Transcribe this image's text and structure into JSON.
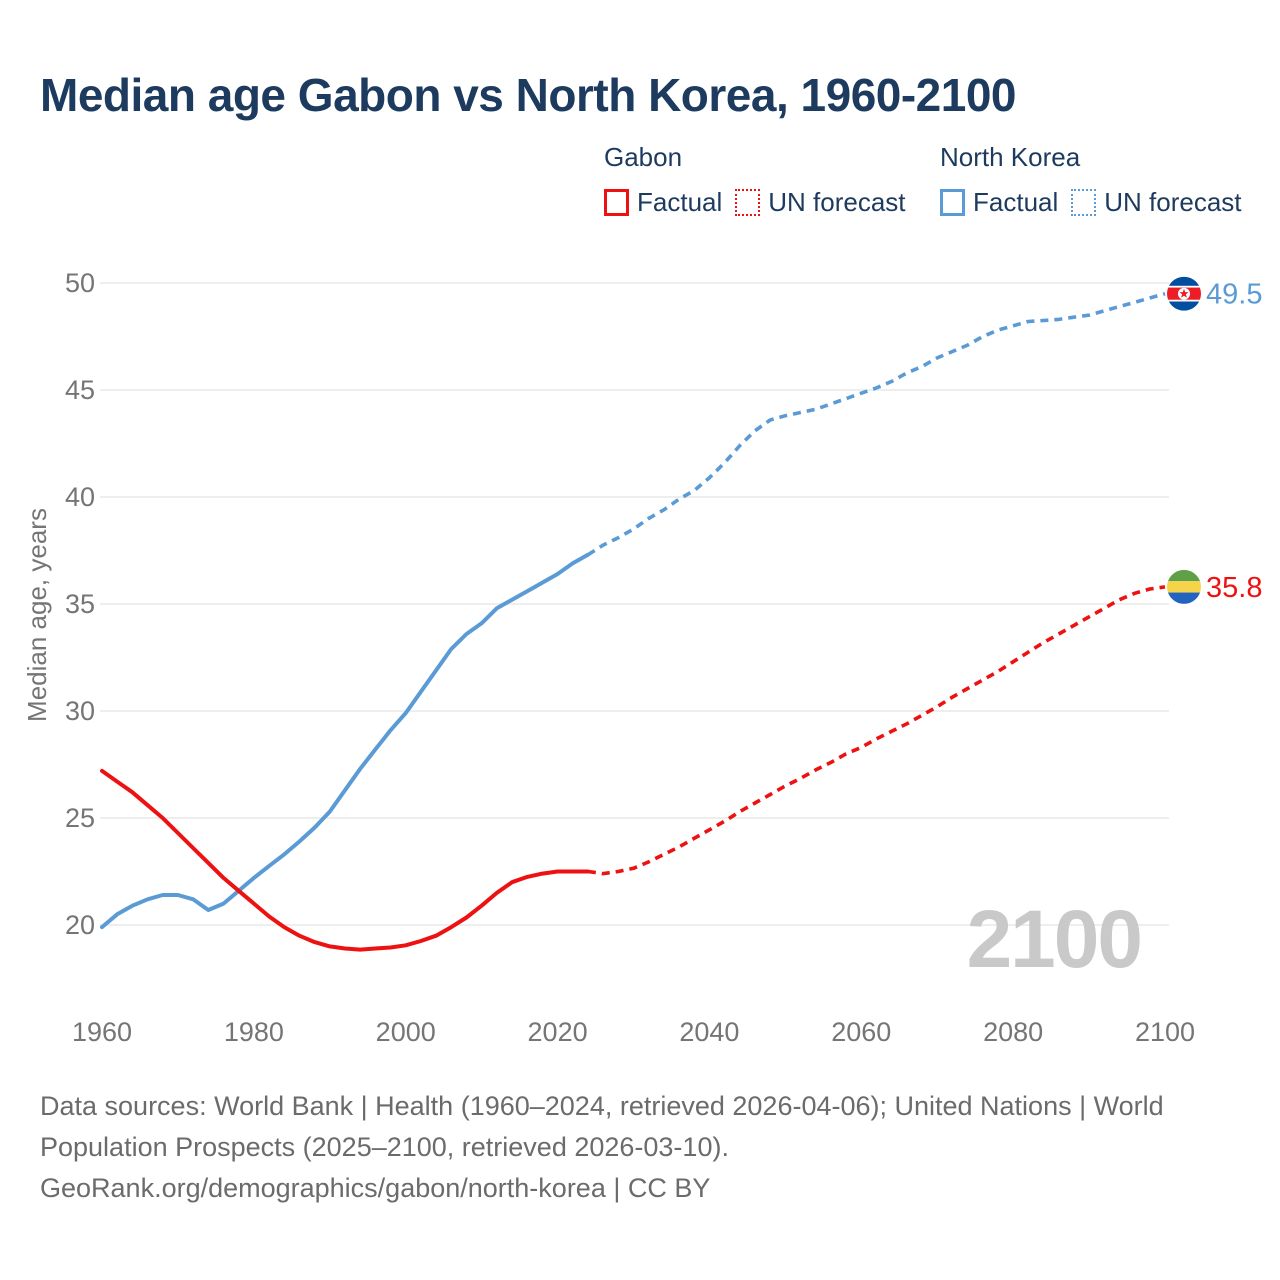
{
  "title": "Median age Gabon vs North Korea, 1960-2100",
  "legend": {
    "groups": [
      {
        "country": "Gabon",
        "color": "#ee1111",
        "items": [
          {
            "label": "Factual",
            "style": "solid"
          },
          {
            "label": "UN forecast",
            "style": "dotted"
          }
        ]
      },
      {
        "country": "North Korea",
        "color": "#5b9bd5",
        "items": [
          {
            "label": "Factual",
            "style": "solid"
          },
          {
            "label": "UN forecast",
            "style": "dotted"
          }
        ]
      }
    ]
  },
  "watermark": "2100",
  "footer": {
    "lines": [
      "Data sources: World Bank | Health (1960–2024, retrieved 2026-04-06); United Nations | World",
      "Population Prospects (2025–2100, retrieved 2026-03-10).",
      "GeoRank.org/demographics/gabon/north-korea | CC BY"
    ]
  },
  "chart_data": {
    "type": "line",
    "title": "Median age Gabon vs North Korea, 1960-2100",
    "xlabel": "",
    "ylabel": "Median age, years",
    "xlim": [
      1960,
      2100
    ],
    "ylim": [
      20,
      50
    ],
    "x_ticks": [
      1960,
      1980,
      2000,
      2020,
      2040,
      2060,
      2080,
      2100
    ],
    "y_ticks": [
      20,
      25,
      30,
      35,
      40,
      45,
      50
    ],
    "grid": "horizontal",
    "legend_position": "top",
    "series": [
      {
        "name": "North Korea — Factual",
        "color": "#5b9bd5",
        "dash": false,
        "points": [
          [
            1960,
            19.9
          ],
          [
            1962,
            20.5
          ],
          [
            1964,
            20.9
          ],
          [
            1966,
            21.2
          ],
          [
            1968,
            21.4
          ],
          [
            1970,
            21.4
          ],
          [
            1972,
            21.2
          ],
          [
            1974,
            20.7
          ],
          [
            1976,
            21.0
          ],
          [
            1978,
            21.6
          ],
          [
            1980,
            22.2
          ],
          [
            1982,
            22.75
          ],
          [
            1984,
            23.3
          ],
          [
            1986,
            23.9
          ],
          [
            1988,
            24.55
          ],
          [
            1990,
            25.3
          ],
          [
            1992,
            26.3
          ],
          [
            1994,
            27.3
          ],
          [
            1996,
            28.2
          ],
          [
            1998,
            29.1
          ],
          [
            2000,
            29.9
          ],
          [
            2002,
            30.9
          ],
          [
            2004,
            31.9
          ],
          [
            2006,
            32.9
          ],
          [
            2008,
            33.6
          ],
          [
            2010,
            34.1
          ],
          [
            2012,
            34.8
          ],
          [
            2014,
            35.2
          ],
          [
            2016,
            35.6
          ],
          [
            2018,
            36.0
          ],
          [
            2020,
            36.4
          ],
          [
            2022,
            36.9
          ],
          [
            2024,
            37.3
          ]
        ]
      },
      {
        "name": "North Korea — UN forecast",
        "color": "#5b9bd5",
        "dash": true,
        "points": [
          [
            2024,
            37.3
          ],
          [
            2026,
            37.75
          ],
          [
            2028,
            38.1
          ],
          [
            2030,
            38.5
          ],
          [
            2032,
            39.0
          ],
          [
            2034,
            39.4
          ],
          [
            2036,
            39.9
          ],
          [
            2038,
            40.3
          ],
          [
            2040,
            40.9
          ],
          [
            2042,
            41.6
          ],
          [
            2044,
            42.4
          ],
          [
            2046,
            43.1
          ],
          [
            2048,
            43.6
          ],
          [
            2050,
            43.8
          ],
          [
            2052,
            43.95
          ],
          [
            2054,
            44.1
          ],
          [
            2056,
            44.35
          ],
          [
            2058,
            44.6
          ],
          [
            2060,
            44.85
          ],
          [
            2062,
            45.1
          ],
          [
            2064,
            45.4
          ],
          [
            2066,
            45.8
          ],
          [
            2068,
            46.1
          ],
          [
            2070,
            46.5
          ],
          [
            2072,
            46.8
          ],
          [
            2074,
            47.1
          ],
          [
            2076,
            47.5
          ],
          [
            2078,
            47.8
          ],
          [
            2080,
            48.0
          ],
          [
            2082,
            48.2
          ],
          [
            2084,
            48.25
          ],
          [
            2086,
            48.3
          ],
          [
            2088,
            48.4
          ],
          [
            2090,
            48.5
          ],
          [
            2092,
            48.7
          ],
          [
            2094,
            48.9
          ],
          [
            2096,
            49.1
          ],
          [
            2098,
            49.3
          ],
          [
            2100,
            49.5
          ]
        ]
      },
      {
        "name": "Gabon — Factual",
        "color": "#ee1111",
        "dash": false,
        "points": [
          [
            1960,
            27.2
          ],
          [
            1962,
            26.7
          ],
          [
            1964,
            26.2
          ],
          [
            1966,
            25.6
          ],
          [
            1968,
            25.0
          ],
          [
            1970,
            24.3
          ],
          [
            1972,
            23.6
          ],
          [
            1974,
            22.9
          ],
          [
            1976,
            22.2
          ],
          [
            1978,
            21.6
          ],
          [
            1980,
            21.0
          ],
          [
            1982,
            20.4
          ],
          [
            1984,
            19.9
          ],
          [
            1986,
            19.5
          ],
          [
            1988,
            19.2
          ],
          [
            1990,
            19.0
          ],
          [
            1992,
            18.9
          ],
          [
            1994,
            18.85
          ],
          [
            1996,
            18.9
          ],
          [
            1998,
            18.95
          ],
          [
            2000,
            19.05
          ],
          [
            2002,
            19.25
          ],
          [
            2004,
            19.5
          ],
          [
            2006,
            19.9
          ],
          [
            2008,
            20.35
          ],
          [
            2010,
            20.9
          ],
          [
            2012,
            21.5
          ],
          [
            2014,
            22.0
          ],
          [
            2016,
            22.25
          ],
          [
            2018,
            22.4
          ],
          [
            2020,
            22.5
          ],
          [
            2022,
            22.5
          ],
          [
            2024,
            22.5
          ]
        ]
      },
      {
        "name": "Gabon — UN forecast",
        "color": "#ee1111",
        "dash": true,
        "points": [
          [
            2024,
            22.5
          ],
          [
            2026,
            22.4
          ],
          [
            2028,
            22.5
          ],
          [
            2030,
            22.65
          ],
          [
            2032,
            22.95
          ],
          [
            2034,
            23.3
          ],
          [
            2036,
            23.65
          ],
          [
            2038,
            24.05
          ],
          [
            2040,
            24.45
          ],
          [
            2042,
            24.85
          ],
          [
            2044,
            25.3
          ],
          [
            2046,
            25.7
          ],
          [
            2048,
            26.1
          ],
          [
            2050,
            26.5
          ],
          [
            2052,
            26.85
          ],
          [
            2054,
            27.25
          ],
          [
            2056,
            27.6
          ],
          [
            2058,
            28.0
          ],
          [
            2060,
            28.3
          ],
          [
            2062,
            28.7
          ],
          [
            2064,
            29.05
          ],
          [
            2066,
            29.4
          ],
          [
            2068,
            29.8
          ],
          [
            2070,
            30.2
          ],
          [
            2072,
            30.65
          ],
          [
            2074,
            31.05
          ],
          [
            2076,
            31.45
          ],
          [
            2078,
            31.85
          ],
          [
            2080,
            32.3
          ],
          [
            2082,
            32.75
          ],
          [
            2084,
            33.2
          ],
          [
            2086,
            33.6
          ],
          [
            2088,
            34.0
          ],
          [
            2090,
            34.4
          ],
          [
            2092,
            34.8
          ],
          [
            2094,
            35.2
          ],
          [
            2096,
            35.5
          ],
          [
            2098,
            35.7
          ],
          [
            2100,
            35.8
          ]
        ]
      }
    ],
    "end_labels": [
      {
        "series": "North Korea",
        "value": "49.5",
        "color": "#5b9bd5",
        "flag": "north-korea"
      },
      {
        "series": "Gabon",
        "value": "35.8",
        "color": "#ee1111",
        "flag": "gabon"
      }
    ],
    "colors": {
      "grid": "#e9e9e9",
      "tick_text": "#757575",
      "watermark": "#c9c9c9",
      "nk_flag_blue": "#024fa2",
      "nk_flag_red": "#ed1c27",
      "gabon_green": "#5fa046",
      "gabon_yellow": "#f6d44a",
      "gabon_blue": "#2563c0"
    }
  }
}
